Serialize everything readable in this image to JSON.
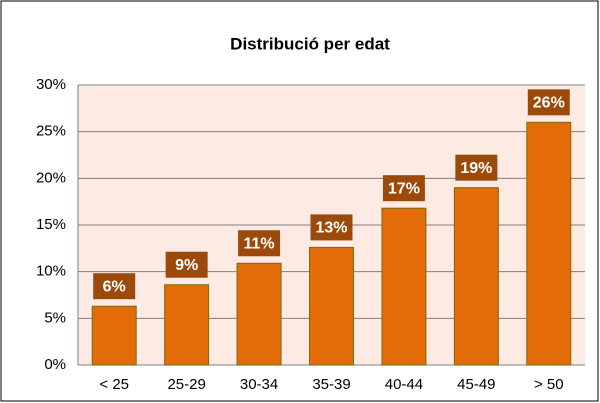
{
  "chart_data": {
    "type": "bar",
    "title": "Distribució per edat",
    "categories": [
      "< 25",
      "25-29",
      "30-34",
      "35-39",
      "40-44",
      "45-49",
      "> 50"
    ],
    "values": [
      6.3,
      8.6,
      10.9,
      12.6,
      16.8,
      19.0,
      26.0
    ],
    "value_labels": [
      "6%",
      "9%",
      "11%",
      "13%",
      "17%",
      "19%",
      "26%"
    ],
    "color": "#e36c09",
    "ylim": [
      0,
      30
    ],
    "yticks": [
      {
        "value": 0,
        "label": "0%"
      },
      {
        "value": 5,
        "label": "5%"
      },
      {
        "value": 10,
        "label": "10%"
      },
      {
        "value": 15,
        "label": "15%"
      },
      {
        "value": 20,
        "label": "20%"
      },
      {
        "value": 25,
        "label": "25%"
      },
      {
        "value": 30,
        "label": "30%"
      }
    ],
    "grid": true
  }
}
